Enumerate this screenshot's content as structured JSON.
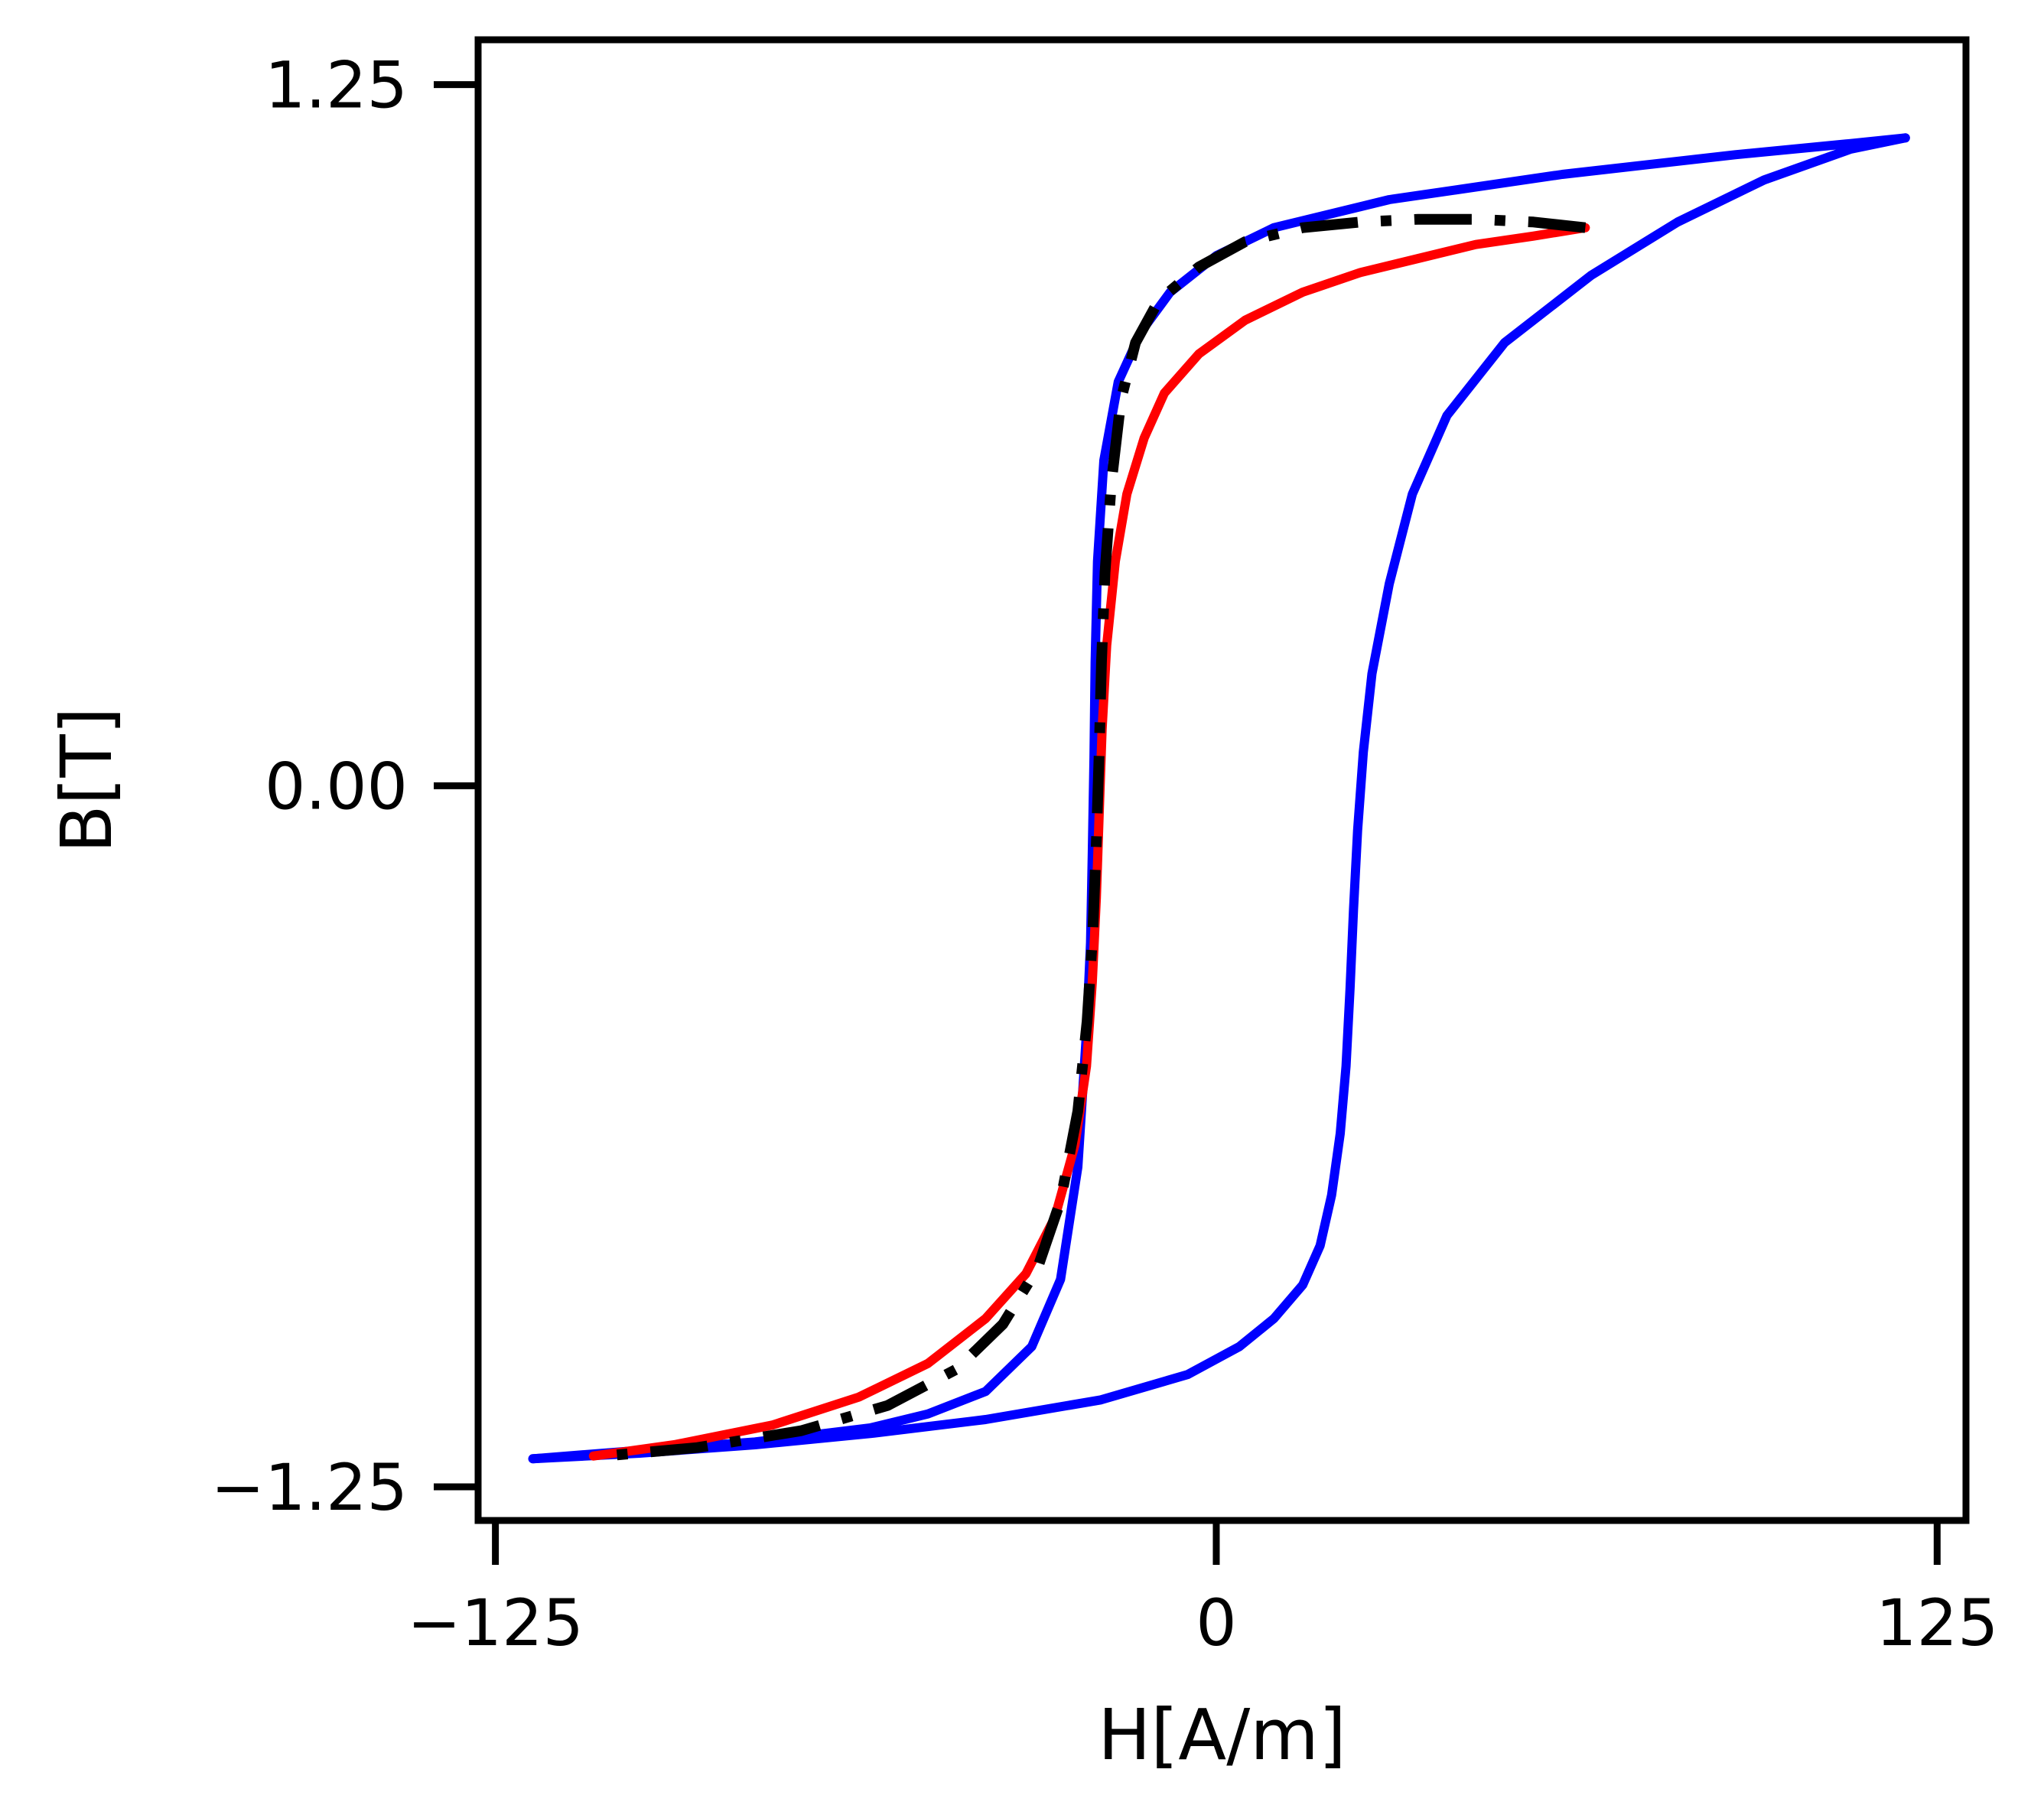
{
  "chart_data": {
    "type": "line",
    "title": "",
    "xlabel": "H[A/m]",
    "ylabel": "B[T]",
    "xlim": [
      -128,
      130
    ],
    "ylim": [
      -1.31,
      1.33
    ],
    "xticks": [
      -125,
      0,
      125
    ],
    "xtick_labels": [
      "−125",
      "0",
      "125"
    ],
    "yticks": [
      -1.25,
      0.0,
      1.25
    ],
    "ytick_labels": [
      "−1.25",
      "0.00",
      "1.25"
    ],
    "grid": false,
    "legend": "none",
    "series": [
      {
        "color": "#0000ff",
        "style": "solid",
        "x": [
          -118.5,
          -100,
          -80,
          -60,
          -50,
          -40,
          -32,
          -27,
          -24,
          -22.5,
          -21.8,
          -21.5,
          -21.2,
          -21,
          -20.6,
          -19.5,
          -17,
          -13,
          -8,
          0,
          10,
          30,
          60,
          90,
          110,
          119.5
        ],
        "y": [
          -1.2,
          -1.185,
          -1.17,
          -1.145,
          -1.12,
          -1.08,
          -1.0,
          -0.88,
          -0.68,
          -0.44,
          -0.28,
          -0.12,
          0.05,
          0.22,
          0.4,
          0.58,
          0.72,
          0.81,
          0.88,
          0.945,
          0.995,
          1.045,
          1.09,
          1.125,
          1.145,
          1.155
        ]
      },
      {
        "color": "#0000ff",
        "style": "solid",
        "x": [
          119.5,
          110,
          95,
          80,
          65,
          50,
          40,
          34,
          30,
          27,
          25.5,
          24.5,
          23.8,
          23.2,
          22.5,
          21.5,
          20,
          18,
          15,
          10,
          4,
          -5,
          -20,
          -40,
          -60,
          -80,
          -100,
          -118.5
        ],
        "y": [
          1.155,
          1.135,
          1.08,
          1.005,
          0.91,
          0.79,
          0.66,
          0.52,
          0.36,
          0.2,
          0.06,
          -0.08,
          -0.22,
          -0.36,
          -0.5,
          -0.62,
          -0.73,
          -0.82,
          -0.89,
          -0.95,
          -1.0,
          -1.05,
          -1.095,
          -1.13,
          -1.155,
          -1.175,
          -1.19,
          -1.2
        ]
      },
      {
        "color": "#ff0000",
        "style": "solid",
        "x": [
          64,
          55,
          45,
          35,
          25,
          15,
          5,
          -3,
          -9,
          -12.5,
          -15.5,
          -17.5,
          -19,
          -19.8,
          -20.3,
          -20.8,
          -21.5,
          -22.5,
          -24.5,
          -28,
          -33,
          -40,
          -50,
          -62,
          -77,
          -94,
          -108
        ],
        "y": [
          0.995,
          0.98,
          0.965,
          0.94,
          0.915,
          0.88,
          0.83,
          0.77,
          0.7,
          0.62,
          0.52,
          0.4,
          0.25,
          0.1,
          -0.05,
          -0.2,
          -0.35,
          -0.5,
          -0.64,
          -0.77,
          -0.87,
          -0.95,
          -1.03,
          -1.09,
          -1.14,
          -1.175,
          -1.195
        ]
      },
      {
        "color": "#000000",
        "style": "dashdot",
        "x": [
          64,
          55,
          45,
          35,
          25,
          15,
          5,
          -3,
          -10,
          -14,
          -16.5,
          -18.2,
          -19.3,
          -19.9,
          -20.3,
          -20.8,
          -21.4,
          -22.4,
          -24,
          -27,
          -31,
          -37,
          -45,
          -57,
          -72,
          -90,
          -106
        ],
        "y": [
          0.995,
          1.005,
          1.01,
          1.01,
          1.005,
          0.995,
          0.97,
          0.925,
          0.865,
          0.79,
          0.69,
          0.54,
          0.38,
          0.22,
          0.06,
          -0.1,
          -0.26,
          -0.42,
          -0.58,
          -0.74,
          -0.86,
          -0.96,
          -1.04,
          -1.105,
          -1.15,
          -1.18,
          -1.195
        ]
      }
    ]
  }
}
